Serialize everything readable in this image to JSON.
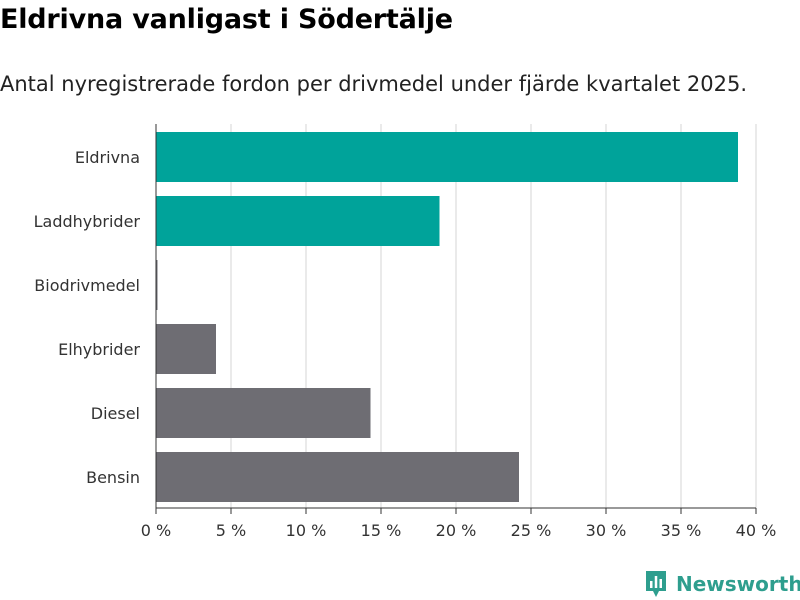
{
  "header": {
    "title": "Eldrivna vanligast i Södertälje",
    "subtitle": "Antal nyregistrerade fordon per drivmedel under fjärde kvartalet 2025."
  },
  "branding": {
    "name": "Newsworthy",
    "icon": "bar-chart-icon",
    "color": "#2e9e8e"
  },
  "chart_data": {
    "type": "bar",
    "orientation": "horizontal",
    "title": "Eldrivna vanligast i Södertälje",
    "subtitle": "Antal nyregistrerade fordon per drivmedel under fjärde kvartalet 2025.",
    "xlabel": "",
    "ylabel": "",
    "categories": [
      "Eldrivna",
      "Laddhybrider",
      "Biodrivmedel",
      "Elhybrider",
      "Diesel",
      "Bensin"
    ],
    "values": [
      38.8,
      18.9,
      0.1,
      4.0,
      14.3,
      24.2
    ],
    "unit": "%",
    "colors": [
      "#00a39a",
      "#00a39a",
      "#6e6d73",
      "#6e6d73",
      "#6e6d73",
      "#6e6d73"
    ],
    "xlim": [
      0,
      40
    ],
    "xticks": [
      0,
      5,
      10,
      15,
      20,
      25,
      30,
      35,
      40
    ],
    "xtick_labels": [
      "0 %",
      "5 %",
      "10 %",
      "15 %",
      "20 %",
      "25 %",
      "30 %",
      "35 %",
      "40 %"
    ],
    "grid": true,
    "gridline_color": "#dddddd",
    "axis_color": "#333333"
  }
}
